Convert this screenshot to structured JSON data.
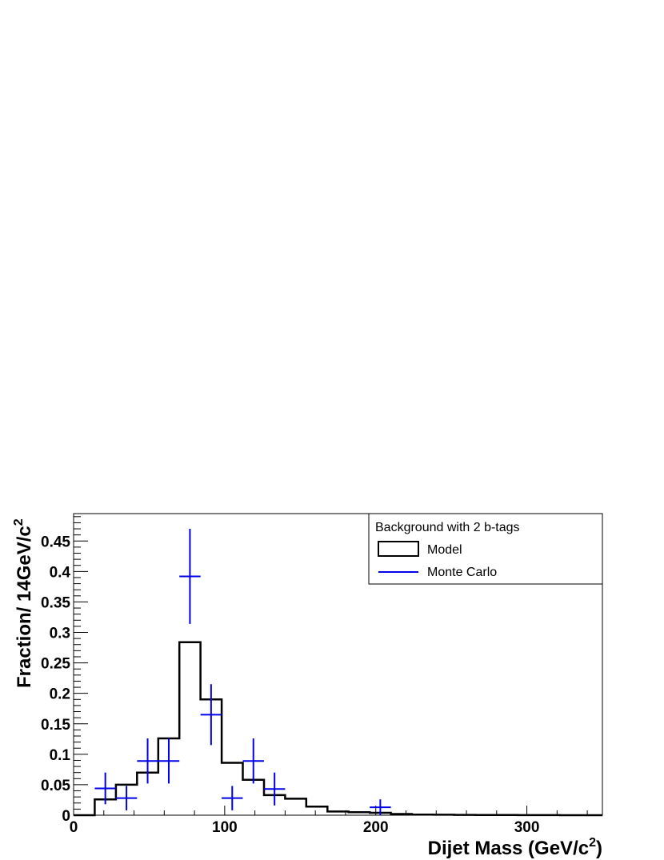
{
  "chart_data": {
    "type": "histogram",
    "xlabel": "Dijet Mass (GeV/c",
    "xlabel_sup": "2",
    "xlabel_suffix": ")",
    "ylabel": "Fraction/ 14GeV/c",
    "ylabel_sup": "2",
    "xlim": [
      0,
      350
    ],
    "ylim": [
      0,
      0.495
    ],
    "x_ticks": [
      0,
      100,
      200,
      300
    ],
    "x_tick_labels": [
      "0",
      "100",
      "200",
      "300"
    ],
    "y_ticks": [
      0,
      0.05,
      0.1,
      0.15,
      0.2,
      0.25,
      0.3,
      0.35,
      0.4,
      0.45
    ],
    "y_tick_labels": [
      "0",
      "0.05",
      "0.1",
      "0.15",
      "0.2",
      "0.25",
      "0.3",
      "0.35",
      "0.4",
      "0.45"
    ],
    "legend": {
      "title": "Background with 2 b-tags",
      "placement": "top-right",
      "entries": [
        {
          "label": "Model",
          "style": "box",
          "color": "#000000"
        },
        {
          "label": "Monte Carlo",
          "style": "line",
          "color": "#0000e6"
        }
      ]
    },
    "series": [
      {
        "name": "Model",
        "kind": "step",
        "color": "#000000",
        "bin_edges": [
          0,
          14,
          28,
          42,
          56,
          70,
          84,
          98,
          112,
          126,
          140,
          154,
          168,
          182,
          196,
          210,
          224,
          238,
          252,
          266,
          280,
          294,
          308,
          322,
          336,
          350
        ],
        "values": [
          0.0,
          0.026,
          0.05,
          0.07,
          0.126,
          0.284,
          0.19,
          0.086,
          0.058,
          0.033,
          0.027,
          0.014,
          0.006,
          0.005,
          0.004,
          0.002,
          0.001,
          0.0008,
          0.0005,
          0.0003,
          0.0002,
          0.0001,
          0.0001,
          0.0,
          0.0
        ]
      },
      {
        "name": "Monte Carlo",
        "kind": "errorbar",
        "color": "#0000e6",
        "x_half_width": 7,
        "points": [
          {
            "x": 21,
            "y": 0.044,
            "err": 0.026
          },
          {
            "x": 35,
            "y": 0.028,
            "err": 0.02
          },
          {
            "x": 49,
            "y": 0.089,
            "err": 0.037
          },
          {
            "x": 63,
            "y": 0.089,
            "err": 0.037
          },
          {
            "x": 77,
            "y": 0.392,
            "err": 0.078
          },
          {
            "x": 91,
            "y": 0.165,
            "err": 0.05
          },
          {
            "x": 105,
            "y": 0.028,
            "err": 0.02
          },
          {
            "x": 119,
            "y": 0.089,
            "err": 0.037
          },
          {
            "x": 133,
            "y": 0.043,
            "err": 0.027
          },
          {
            "x": 203,
            "y": 0.013,
            "err": 0.013
          }
        ]
      }
    ]
  }
}
